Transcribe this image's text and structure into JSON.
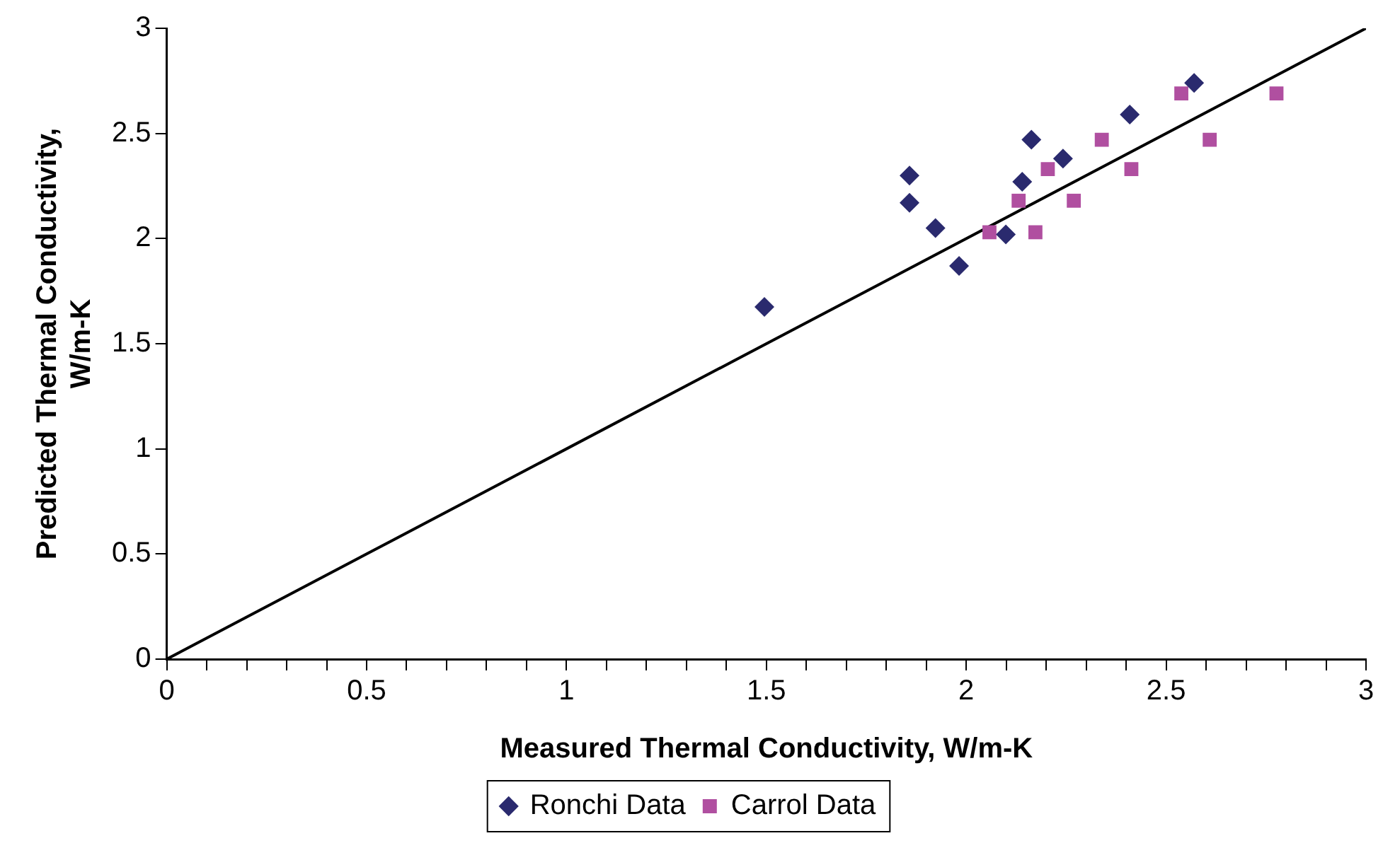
{
  "chart_data": {
    "type": "scatter",
    "xlabel": "Measured Thermal Conductivity, W/m-K",
    "ylabel": "Predicted Thermal Conductivity, W/m-K",
    "xlim": [
      0,
      3
    ],
    "ylim": [
      0,
      3
    ],
    "xticks": [
      0,
      {
        "value": 0.1,
        "label": null
      },
      {
        "value": 0.2,
        "label": null
      },
      {
        "value": 0.3,
        "label": null
      },
      {
        "value": 0.4,
        "label": null
      },
      0.5,
      {
        "value": 0.6,
        "label": null
      },
      {
        "value": 0.7,
        "label": null
      },
      {
        "value": 0.8,
        "label": null
      },
      {
        "value": 0.9,
        "label": null
      },
      1,
      {
        "value": 1.1,
        "label": null
      },
      {
        "value": 1.2,
        "label": null
      },
      {
        "value": 1.3,
        "label": null
      },
      {
        "value": 1.4,
        "label": null
      },
      1.5,
      {
        "value": 1.6,
        "label": null
      },
      {
        "value": 1.7,
        "label": null
      },
      {
        "value": 1.8,
        "label": null
      },
      {
        "value": 1.9,
        "label": null
      },
      2,
      {
        "value": 2.1,
        "label": null
      },
      {
        "value": 2.2,
        "label": null
      },
      {
        "value": 2.3,
        "label": null
      },
      {
        "value": 2.4,
        "label": null
      },
      2.5,
      {
        "value": 2.6,
        "label": null
      },
      {
        "value": 2.7,
        "label": null
      },
      {
        "value": 2.8,
        "label": null
      },
      {
        "value": 2.9,
        "label": null
      },
      3
    ],
    "yticks": [
      0,
      0.5,
      1,
      1.5,
      2,
      2.5,
      3
    ],
    "grid": false,
    "legend": "bottom",
    "series": [
      {
        "name": "Ronchi Data",
        "color": "#2a2a6e",
        "marker": "diamond",
        "x": [
          1.495,
          1.858,
          1.858,
          1.923,
          1.982,
          2.099,
          2.14,
          2.163,
          2.242,
          2.409,
          2.57
        ],
        "values": [
          1.675,
          2.3,
          2.17,
          2.05,
          1.87,
          2.02,
          2.27,
          2.47,
          2.38,
          2.59,
          2.74
        ]
      },
      {
        "name": "Carrol Data",
        "color": "#b04fa0",
        "marker": "square",
        "x": [
          2.058,
          2.131,
          2.173,
          2.204,
          2.269,
          2.339,
          2.413,
          2.538,
          2.609,
          2.776
        ],
        "values": [
          2.03,
          2.18,
          2.03,
          2.33,
          2.18,
          2.47,
          2.33,
          2.69,
          2.47,
          2.69
        ]
      },
      {
        "type": "line",
        "color": "#000000",
        "marker": "none",
        "x": [
          0,
          3
        ],
        "values": [
          0,
          3
        ]
      }
    ]
  }
}
